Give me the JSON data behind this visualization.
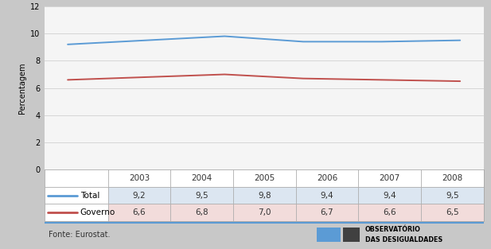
{
  "years": [
    2003,
    2004,
    2005,
    2006,
    2007,
    2008
  ],
  "total": [
    9.2,
    9.5,
    9.8,
    9.4,
    9.4,
    9.5
  ],
  "governo": [
    6.6,
    6.8,
    7.0,
    6.7,
    6.6,
    6.5
  ],
  "total_color": "#5b9bd5",
  "governo_color": "#c0504d",
  "ylabel": "Percentagem",
  "ylim": [
    0,
    12
  ],
  "yticks": [
    0,
    2,
    4,
    6,
    8,
    10,
    12
  ],
  "grid_color": "#d0d0d0",
  "chart_bg": "#f5f5f5",
  "outer_bg": "#c8c8c8",
  "table_border": "#aaaaaa",
  "fonte_text": "Fonte: Eurostat.",
  "obs_line1": "OBSERVATÓRIO",
  "obs_line2": "DAS DESIGUALDADES",
  "legend_total": "Total",
  "legend_governo": "Governo",
  "total_vals_str": [
    "9,2",
    "9,5",
    "9,8",
    "9,4",
    "9,4",
    "9,5"
  ],
  "governo_vals_str": [
    "6,6",
    "6,8",
    "7,0",
    "6,7",
    "6,6",
    "6,5"
  ]
}
